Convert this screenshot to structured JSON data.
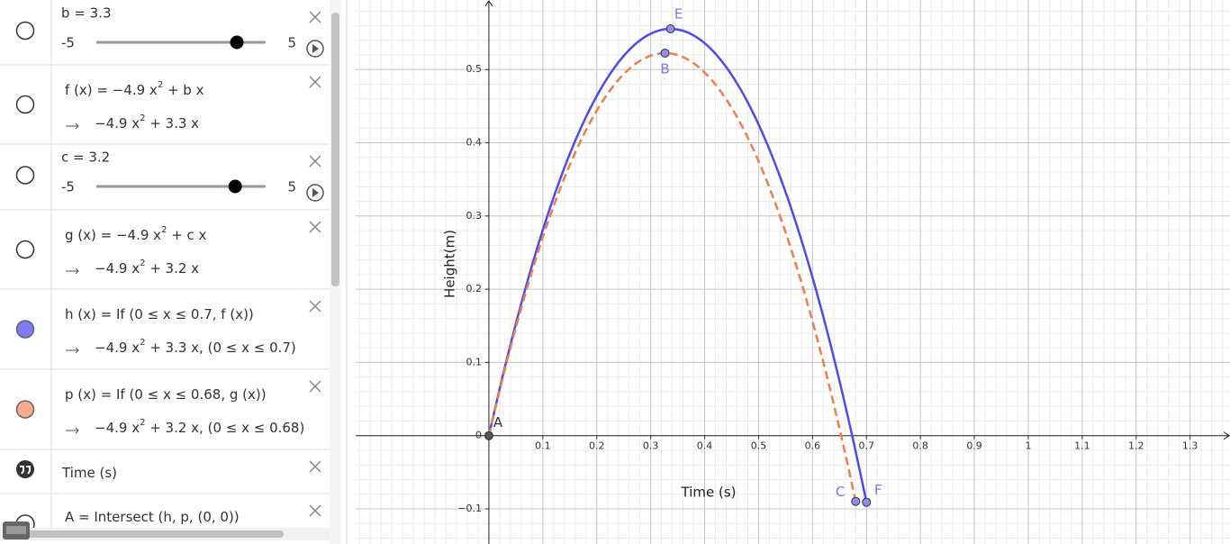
{
  "algebra": {
    "items": [
      {
        "type": "slider",
        "label": "b = 3.3",
        "min": -5,
        "max": 5,
        "value": 3.3
      },
      {
        "type": "function",
        "definition": [
          "f (x) = −4.9 x",
          "2",
          " + b x"
        ],
        "result": [
          "−4.9 x",
          "2",
          " + 3.3 x"
        ]
      },
      {
        "type": "slider",
        "label": "c = 3.2",
        "min": -5,
        "max": 5,
        "value": 3.2
      },
      {
        "type": "function",
        "definition": [
          "g (x) = −4.9 x",
          "2",
          " + c x"
        ],
        "result": [
          "−4.9 x",
          "2",
          " + 3.2 x"
        ]
      },
      {
        "type": "function",
        "definition": [
          "h (x) = If (0 ≤ x ≤ 0.7, f (x))"
        ],
        "result": [
          "−4.9 x",
          "2",
          " + 3.3 x,     (0 ≤ x ≤ 0.7)"
        ],
        "icon_color": "#7b7bf5"
      },
      {
        "type": "function",
        "definition": [
          "p (x) = If (0 ≤ x ≤ 0.68, g (x))"
        ],
        "result": [
          "−4.9 x",
          "2",
          " + 3.2 x,     (0 ≤ x ≤ 0.68)"
        ],
        "icon_color": "#f7a98e"
      },
      {
        "type": "text",
        "definition": [
          "Time (s)"
        ]
      },
      {
        "type": "point",
        "definition": [
          "A = Intersect (h, p, (0, 0))"
        ]
      }
    ]
  },
  "graph": {
    "x_label": "Time (s)",
    "y_label": "Height(m)",
    "xlim": [
      -0.247,
      1.374
    ],
    "ylim": [
      -0.148,
      0.595
    ],
    "xticks": [
      0.1,
      0.2,
      0.3,
      0.4,
      0.5,
      0.6,
      0.7,
      0.8,
      0.9,
      1,
      1.1,
      1.2,
      1.3
    ],
    "yticks": [
      {
        "value": -0.1,
        "label": "−0.1"
      },
      0,
      0.1,
      0.2,
      0.3,
      0.4,
      0.5
    ],
    "grid": true,
    "minor_step": 0.02,
    "curves": [
      {
        "coefficients": [
          -4.9,
          3.3
        ],
        "x_range": [
          0,
          0.7
        ],
        "color": "#4b4bf0",
        "dashed": false
      },
      {
        "coefficients": [
          -4.9,
          3.2
        ],
        "x_range": [
          0,
          0.68
        ],
        "color": "#f07d4a",
        "dashed": true
      }
    ],
    "points": [
      {
        "label": "A",
        "x": 0,
        "y": 0,
        "color": "#555555"
      },
      {
        "label": "B",
        "x": 0.3265,
        "y": 0.5224,
        "color": "#8d8df2"
      },
      {
        "label": "E",
        "x": 0.3367,
        "y": 0.5556,
        "color": "#8d8df2"
      },
      {
        "label": "C",
        "x": 0.68,
        "y": -0.0898,
        "color": "#8d8df2"
      },
      {
        "label": "F",
        "x": 0.7,
        "y": -0.091,
        "color": "#8d8df2"
      }
    ]
  }
}
